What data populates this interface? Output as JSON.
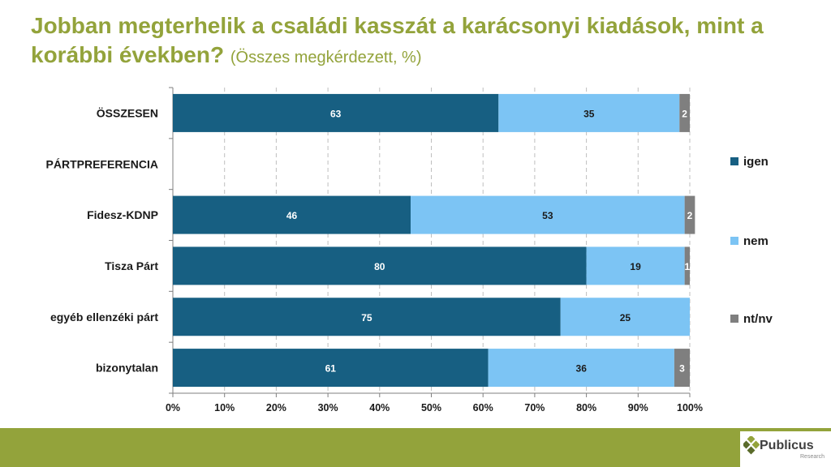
{
  "title": {
    "main": "Jobban megterhelik a családi kasszát a karácsonyi kiadások, mint a korábbi években?",
    "sub": "(Összes megkérdezett, %)"
  },
  "logo": {
    "name": "Publicus",
    "tagline": "Research"
  },
  "colors": {
    "title": "#93a33b",
    "footer": "#93a33b"
  },
  "chart_data": {
    "type": "bar",
    "orientation": "horizontal",
    "stacked": "100%",
    "categories": [
      "ÖSSZESEN",
      "PÁRTPREFERENCIA",
      "Fidesz-KDNP",
      "Tisza Párt",
      "egyéb ellenzéki párt",
      "bizonytalan"
    ],
    "series": [
      {
        "name": "igen",
        "color": "#175f82",
        "label_color": "#ffffff",
        "values": [
          63,
          null,
          46,
          80,
          75,
          61
        ]
      },
      {
        "name": "nem",
        "color": "#7cc4f4",
        "label_color": "#1a1a1a",
        "values": [
          35,
          null,
          53,
          19,
          25,
          36
        ]
      },
      {
        "name": "nt/nv",
        "color": "#7f7f7f",
        "label_color": "#ffffff",
        "values": [
          2,
          null,
          2,
          1,
          0,
          3
        ]
      }
    ],
    "x_ticks": [
      "0%",
      "10%",
      "20%",
      "30%",
      "40%",
      "50%",
      "60%",
      "70%",
      "80%",
      "90%",
      "100%"
    ],
    "xlim": [
      0,
      100
    ],
    "grid": "vertical dashed",
    "legend_position": "right"
  }
}
